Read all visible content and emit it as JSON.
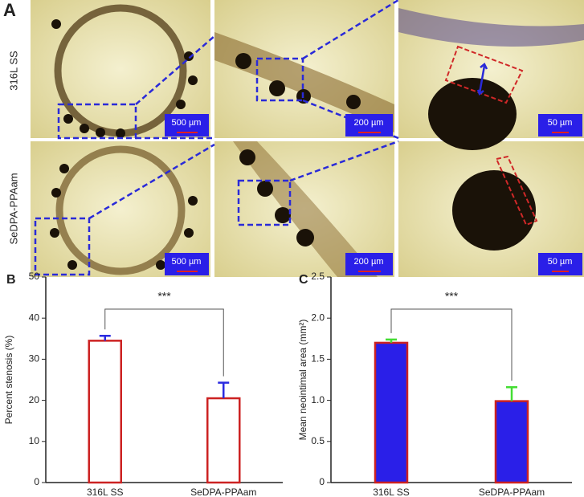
{
  "figure": {
    "panel_label": "A",
    "row_labels": [
      "316L SS",
      "SeDPA-PPAam"
    ],
    "scale_bars": [
      [
        "500 µm",
        "200 µm",
        "50 µm"
      ],
      [
        "500 µm",
        "200 µm",
        "50 µm"
      ]
    ]
  },
  "chart_data": [
    {
      "type": "bar",
      "panel_label": "B",
      "y_label": "Percent stenosis (%)",
      "categories": [
        "316L SS",
        "SeDPA-PPAam"
      ],
      "values": [
        34.5,
        20.5
      ],
      "errors": [
        1.2,
        3.8
      ],
      "fill": "#ffffff",
      "edge_color": "#cc2222",
      "error_color": "#2a2ae0",
      "ylim": [
        0,
        50
      ],
      "yticks": [
        0,
        10,
        20,
        30,
        40,
        50
      ],
      "grid": false,
      "annotation": "***"
    },
    {
      "type": "bar",
      "panel_label": "C",
      "y_label": "Mean neointimal area (mm²)",
      "categories": [
        "316L SS",
        "SeDPA-PPAam"
      ],
      "values": [
        1.7,
        0.99
      ],
      "errors": [
        0.04,
        0.17
      ],
      "fill": "#2a1fe8",
      "edge_color": "#cc2222",
      "error_color": "#44dd33",
      "ylim": [
        0,
        2.5
      ],
      "yticks": [
        0,
        0.5,
        {
          "value": 1,
          "label": "1.0"
        },
        1.5,
        {
          "value": 2,
          "label": "2.0"
        },
        2.5
      ],
      "grid": false,
      "annotation": "***"
    }
  ]
}
